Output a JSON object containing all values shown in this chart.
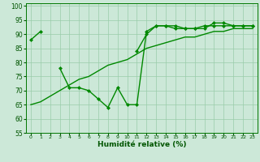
{
  "xlabel": "Humidité relative (%)",
  "xlim": [
    -0.5,
    23.5
  ],
  "ylim": [
    55,
    101
  ],
  "xticks": [
    0,
    1,
    2,
    3,
    4,
    5,
    6,
    7,
    8,
    9,
    10,
    11,
    12,
    13,
    14,
    15,
    16,
    17,
    18,
    19,
    20,
    21,
    22,
    23
  ],
  "yticks": [
    55,
    60,
    65,
    70,
    75,
    80,
    85,
    90,
    95,
    100
  ],
  "background_color": "#cce8d8",
  "grid_color": "#99ccaa",
  "line_color": "#008800",
  "s1": [
    88,
    91,
    null,
    78,
    71,
    71,
    70,
    67,
    64,
    71,
    65,
    65,
    91,
    93,
    93,
    92,
    92,
    92,
    92,
    94,
    94,
    93,
    93,
    93
  ],
  "s2": [
    65,
    66,
    68,
    70,
    72,
    74,
    75,
    77,
    79,
    80,
    81,
    83,
    85,
    86,
    87,
    88,
    89,
    89,
    90,
    91,
    91,
    92,
    92,
    92
  ],
  "s3": [
    null,
    null,
    null,
    null,
    null,
    null,
    null,
    null,
    null,
    null,
    null,
    84,
    90,
    93,
    93,
    93,
    92,
    92,
    93,
    93,
    93,
    93,
    93,
    93
  ]
}
